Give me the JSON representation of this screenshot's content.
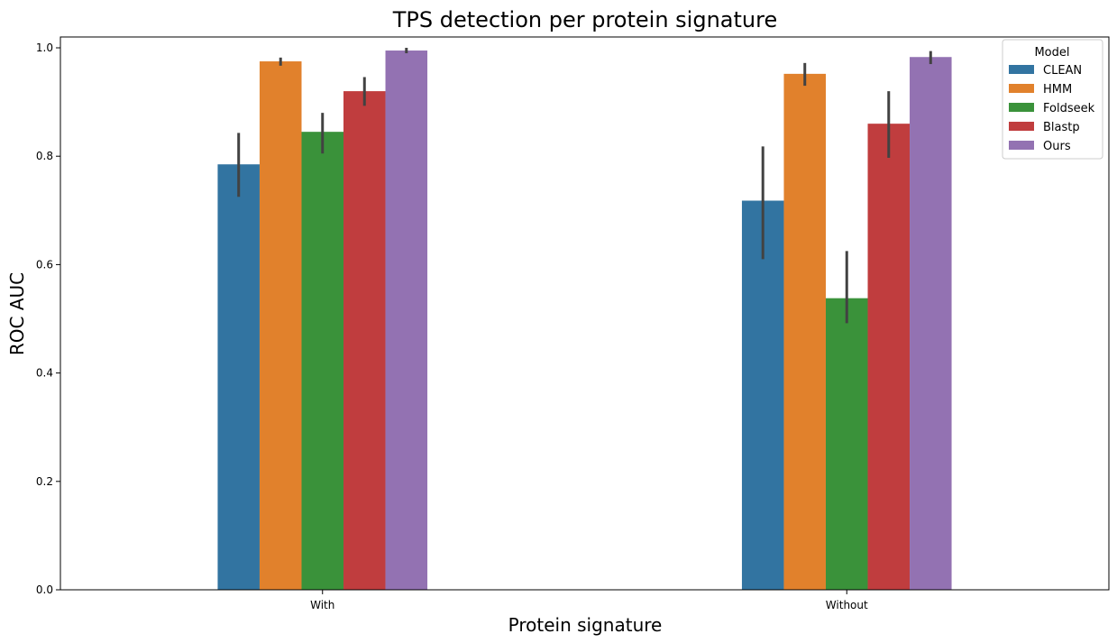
{
  "chart_data": {
    "type": "bar",
    "title": "TPS detection per protein signature",
    "xlabel": "Protein signature",
    "ylabel": "ROC AUC",
    "categories": [
      "With",
      "Without"
    ],
    "ylim": [
      0,
      1.02
    ],
    "yticks": [
      "0.0",
      "0.2",
      "0.4",
      "0.6",
      "0.8",
      "1.0"
    ],
    "legend_title": "Model",
    "legend_position": "top-right",
    "series": [
      {
        "name": "CLEAN",
        "color": "#3274a1",
        "values": [
          0.785,
          0.718
        ],
        "err_low": [
          0.725,
          0.61
        ],
        "err_high": [
          0.843,
          0.818
        ]
      },
      {
        "name": "HMM",
        "color": "#e1812c",
        "values": [
          0.975,
          0.952
        ],
        "err_low": [
          0.967,
          0.93
        ],
        "err_high": [
          0.982,
          0.972
        ]
      },
      {
        "name": "Foldseek",
        "color": "#3a923a",
        "values": [
          0.845,
          0.538
        ],
        "err_low": [
          0.805,
          0.492
        ],
        "err_high": [
          0.88,
          0.625
        ]
      },
      {
        "name": "Blastp",
        "color": "#c03d3e",
        "values": [
          0.92,
          0.86
        ],
        "err_low": [
          0.893,
          0.797
        ],
        "err_high": [
          0.946,
          0.92
        ]
      },
      {
        "name": "Ours",
        "color": "#9372b2",
        "values": [
          0.995,
          0.983
        ],
        "err_low": [
          0.99,
          0.97
        ],
        "err_high": [
          1.0,
          0.994
        ]
      }
    ]
  }
}
